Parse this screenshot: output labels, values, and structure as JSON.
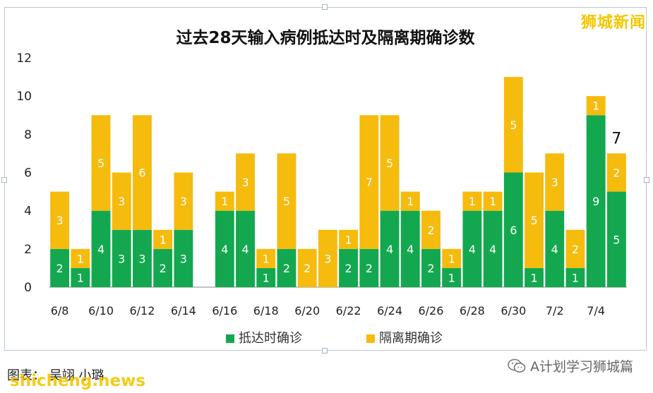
{
  "brand": "狮城新闻",
  "footer": {
    "left_text": "图表： 吴翊 小璐",
    "watermark": "shicheng.news",
    "wechat_label": "A计划学习狮城篇"
  },
  "colors": {
    "green": "#13a84f",
    "yellow": "#f5bb0d",
    "frame": "#b9c6cf"
  },
  "chart_data": {
    "type": "bar",
    "stacked": true,
    "title": "过去28天输入病例抵达时及隔离期确诊数",
    "ylim": [
      0,
      12
    ],
    "yticks": [
      0,
      2,
      4,
      6,
      8,
      10,
      12
    ],
    "categories": [
      "6/8",
      "6/9",
      "6/10",
      "6/11",
      "6/12",
      "6/13",
      "6/14",
      "6/15",
      "6/16",
      "6/17",
      "6/18",
      "6/19",
      "6/20",
      "6/21",
      "6/22",
      "6/23",
      "6/24",
      "6/25",
      "6/26",
      "6/27",
      "6/28",
      "6/29",
      "6/30",
      "7/1",
      "7/2",
      "7/3",
      "7/4",
      "7/5"
    ],
    "tick_labels": [
      "6/8",
      "6/10",
      "6/12",
      "6/14",
      "6/16",
      "6/18",
      "6/20",
      "6/22",
      "6/24",
      "6/26",
      "6/28",
      "6/30",
      "7/2",
      "7/4"
    ],
    "series": [
      {
        "name": "抵达时确诊",
        "values": [
          2,
          1,
          4,
          3,
          3,
          2,
          3,
          0,
          4,
          4,
          1,
          2,
          0,
          0,
          2,
          2,
          4,
          4,
          2,
          1,
          4,
          4,
          6,
          1,
          4,
          1,
          9,
          5
        ]
      },
      {
        "name": "隔离期确诊",
        "values": [
          3,
          1,
          5,
          3,
          6,
          1,
          3,
          0,
          1,
          3,
          1,
          5,
          2,
          3,
          1,
          7,
          5,
          1,
          2,
          1,
          1,
          1,
          5,
          5,
          3,
          2,
          1,
          2
        ]
      }
    ],
    "annotation": "7",
    "grid": false,
    "legend": "bottom"
  }
}
